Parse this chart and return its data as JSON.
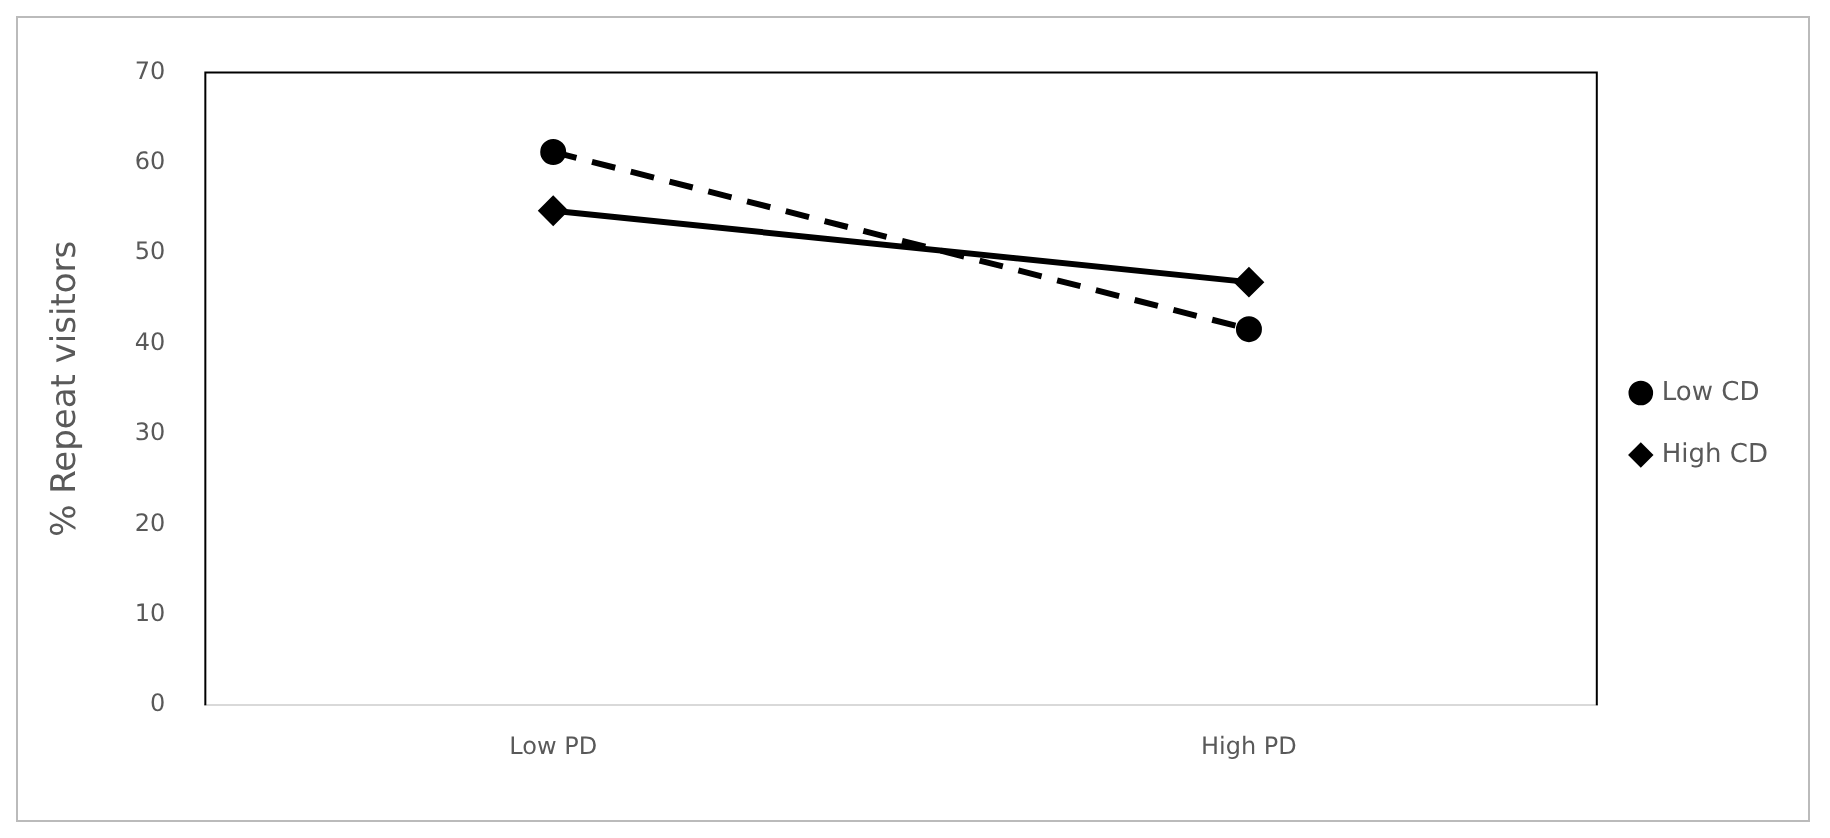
{
  "chart_data": {
    "type": "line",
    "ylabel": "% Repeat visitors",
    "categories": [
      "Low PD",
      "High PD"
    ],
    "series": [
      {
        "name": "Low CD",
        "color": "#000000",
        "values": [
          61.2,
          41.6
        ],
        "marker": "circle",
        "line_style": "dashed"
      },
      {
        "name": "High CD",
        "color": "#000000",
        "values": [
          54.7,
          46.8
        ],
        "marker": "diamond",
        "line_style": "solid"
      }
    ],
    "ylim": [
      0,
      70
    ],
    "yticks": [
      0,
      10,
      20,
      30,
      40,
      50,
      60,
      70
    ],
    "grid": false,
    "legend": "right"
  }
}
